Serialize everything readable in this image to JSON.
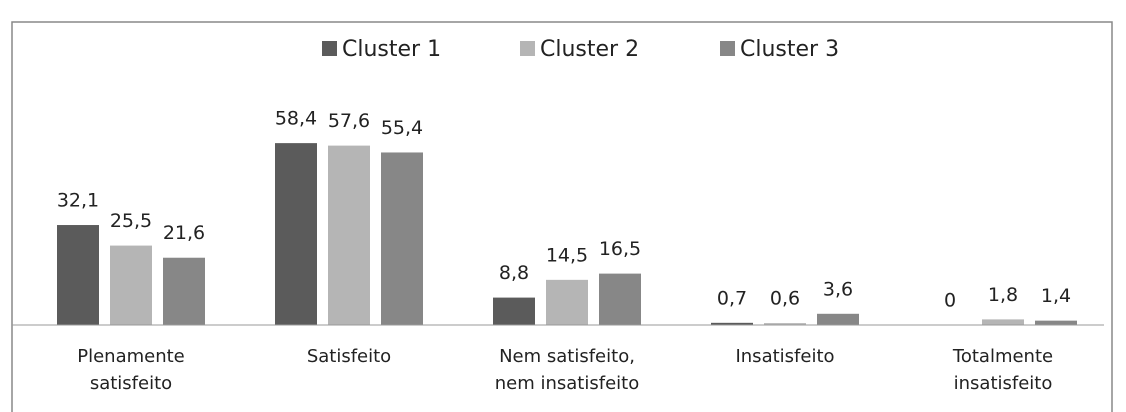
{
  "chart_data": {
    "type": "bar",
    "categories": [
      "Plenamente\nsatisfeito",
      "Satisfeito",
      "Nem satisfeito,\nnem insatisfeito",
      "Insatisfeito",
      "Totalmente\ninsatisfeito"
    ],
    "series": [
      {
        "name": "Cluster 1",
        "color": "#5b5b5b",
        "values": [
          32.1,
          58.4,
          8.8,
          0.7,
          0
        ],
        "value_labels": [
          "32,1",
          "58,4",
          "8,8",
          "0,7",
          "0"
        ]
      },
      {
        "name": "Cluster 2",
        "color": "#b5b5b5",
        "values": [
          25.5,
          57.6,
          14.5,
          0.6,
          1.8
        ],
        "value_labels": [
          "25,5",
          "57,6",
          "14,5",
          "0,6",
          "1,8"
        ]
      },
      {
        "name": "Cluster 3",
        "color": "#878787",
        "values": [
          21.6,
          55.4,
          16.5,
          3.6,
          1.4
        ],
        "value_labels": [
          "21,6",
          "55,4",
          "16,5",
          "3,6",
          "1,4"
        ]
      }
    ],
    "ylim": [
      0,
      70
    ],
    "legend": "top"
  }
}
